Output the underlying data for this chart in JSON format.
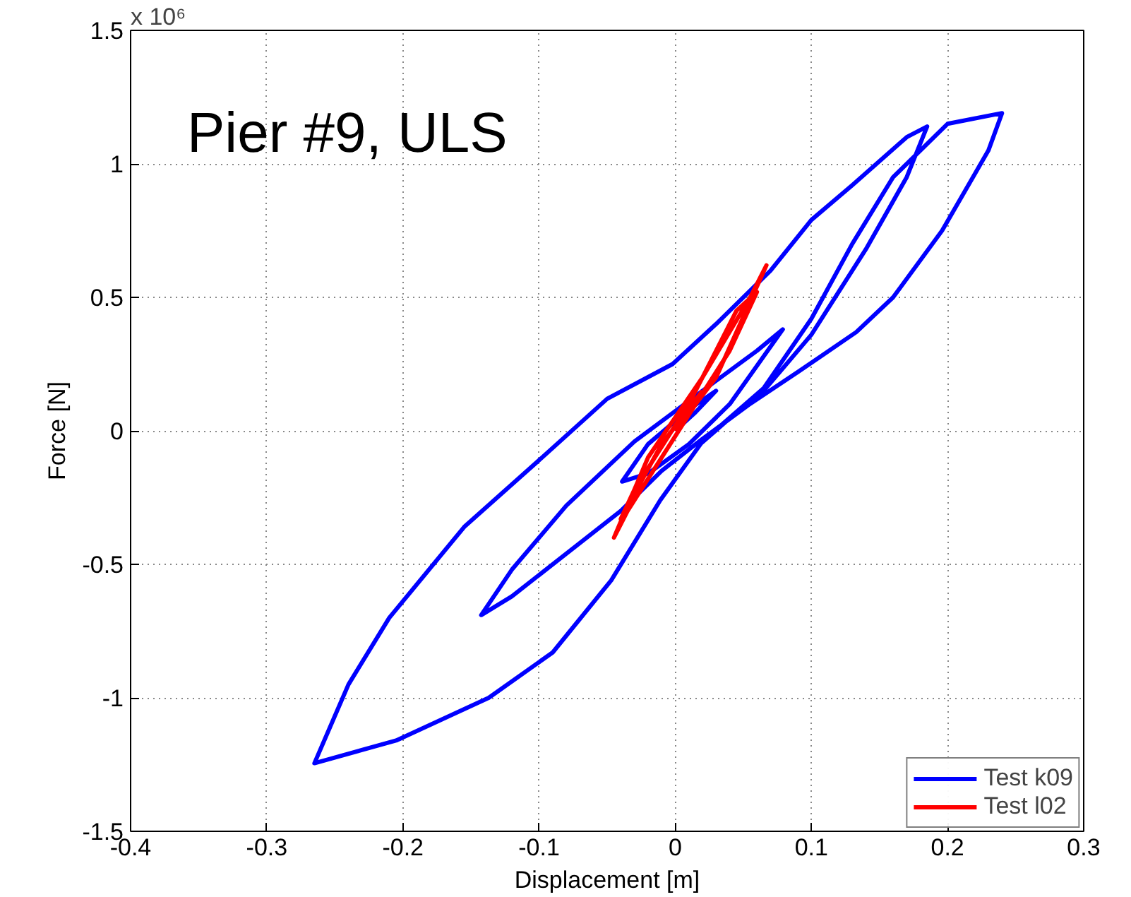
{
  "chart_data": {
    "type": "line",
    "title": "Pier #9, ULS",
    "xlabel": "Displacement [m]",
    "ylabel": "Force [N]",
    "annotations": [
      "x 10⁶"
    ],
    "xlim": [
      -0.4,
      0.3
    ],
    "xticks": [
      -0.4,
      -0.3,
      -0.2,
      -0.1,
      0,
      0.1,
      0.2,
      0.3
    ],
    "ylim": [
      -1.5,
      1.5
    ],
    "yticks": [
      -1.5,
      -1,
      -0.5,
      0,
      0.5,
      1,
      1.5
    ],
    "grid": true,
    "legend": "bottom right",
    "line_style": "solid",
    "series": [
      {
        "name": "Test k09",
        "color": "#0000ff",
        "x": [
          0,
          0.015,
          0.03,
          0.01,
          -0.02,
          -0.039,
          -0.02,
          0.01,
          0.04,
          0.079,
          0.06,
          0.02,
          -0.03,
          -0.08,
          -0.12,
          -0.1425,
          -0.12,
          -0.08,
          -0.04,
          -0.01,
          0.02,
          0.06,
          0.1,
          0.14,
          0.17,
          0.185,
          0.17,
          0.13,
          0.1,
          0.07,
          0.03,
          -0.002,
          -0.05,
          -0.1,
          -0.155,
          -0.21,
          -0.24,
          -0.265,
          -0.205,
          -0.137,
          -0.09,
          -0.047,
          -0.011,
          0.02,
          0.065,
          0.1,
          0.13,
          0.16,
          0.2,
          0.24,
          0.23,
          0.196,
          0.16,
          0.133,
          0.09,
          0.043,
          0.016
        ],
        "values": [
          0,
          0.07,
          0.15,
          0.08,
          -0.05,
          -0.19,
          -0.16,
          -0.05,
          0.1,
          0.38,
          0.3,
          0.15,
          -0.04,
          -0.28,
          -0.52,
          -0.69,
          -0.62,
          -0.46,
          -0.3,
          -0.15,
          -0.03,
          0.12,
          0.36,
          0.68,
          0.95,
          1.14,
          1.1,
          0.92,
          0.79,
          0.6,
          0.4,
          0.25,
          0.12,
          -0.11,
          -0.36,
          -0.7,
          -0.95,
          -1.245,
          -1.16,
          -1.0,
          -0.83,
          -0.56,
          -0.26,
          -0.04,
          0.16,
          0.42,
          0.7,
          0.95,
          1.15,
          1.19,
          1.05,
          0.75,
          0.5,
          0.37,
          0.22,
          0.06,
          -0.06
        ]
      },
      {
        "name": "Test l02",
        "color": "#ff0000",
        "x": [
          0,
          0.03,
          0.067,
          0.055,
          0.02,
          -0.02,
          -0.045,
          -0.035,
          0,
          0.04,
          0.06,
          0.045,
          0.01,
          -0.03,
          -0.04,
          -0.01,
          0.02
        ],
        "values": [
          0,
          0.2,
          0.62,
          0.5,
          0.2,
          -0.1,
          -0.4,
          -0.3,
          -0.02,
          0.3,
          0.52,
          0.45,
          0.1,
          -0.22,
          -0.33,
          -0.05,
          0.15
        ]
      }
    ]
  }
}
